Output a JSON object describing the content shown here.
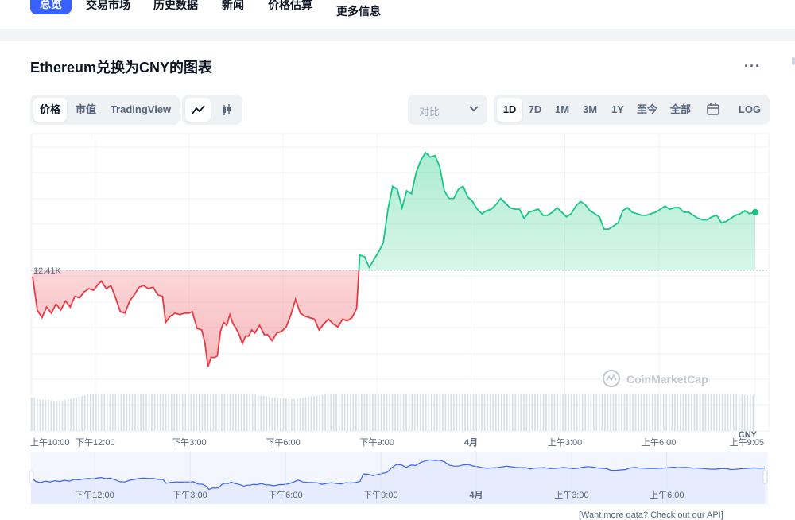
{
  "nav": {
    "items": [
      {
        "label": "总览",
        "active": true
      },
      {
        "label": "交易市场"
      },
      {
        "label": "历史数据"
      },
      {
        "label": "新闻"
      },
      {
        "label": "价格估算"
      },
      {
        "label": "更多信息"
      }
    ]
  },
  "page": {
    "title": "Ethereum兑换为CNY的图表",
    "more_icon": "more-horizontal-icon"
  },
  "toolbar": {
    "chart_types": [
      "价格",
      "市值",
      "TradingView"
    ],
    "chart_types_active": "价格",
    "view_icons": [
      "line-chart-icon",
      "candlestick-icon"
    ],
    "compare_placeholder": "对比",
    "compare_icon": "chevron-down-icon",
    "ranges": [
      "1D",
      "7D",
      "1M",
      "3M",
      "1Y",
      "至今",
      "全部"
    ],
    "range_active": "1D",
    "calendar_icon": "calendar-icon",
    "log_label": "LOG"
  },
  "chart_data": {
    "type": "line",
    "currency": "CNY",
    "reference_value": 12410,
    "reference_label": "12.41K",
    "y_unit_label": "CNY",
    "watermark": "CoinMarketCap",
    "colors": {
      "above": "#16c784",
      "below": "#ea3943",
      "volume": "#d9dde4",
      "navigator_line": "#3861fb",
      "navigator_fill": "#e6ebfd"
    },
    "x_tick_labels": [
      "上午10:00",
      "下午12:00",
      "下午3:00",
      "下午6:00",
      "下午9:00",
      "4月",
      "上午3:00",
      "上午6:00",
      "上午9:05"
    ],
    "x_tick_hours": [
      0,
      2,
      5,
      8,
      11,
      14,
      17,
      20,
      23.08
    ],
    "grid": true,
    "price_series": [
      [
        0.0,
        12406
      ],
      [
        0.15,
        12384
      ],
      [
        0.3,
        12379
      ],
      [
        0.45,
        12386
      ],
      [
        0.6,
        12382
      ],
      [
        0.75,
        12388
      ],
      [
        0.9,
        12384
      ],
      [
        1.05,
        12390
      ],
      [
        1.2,
        12386
      ],
      [
        1.35,
        12393
      ],
      [
        1.5,
        12392
      ],
      [
        1.65,
        12396
      ],
      [
        1.8,
        12398
      ],
      [
        1.95,
        12397
      ],
      [
        2.1,
        12401
      ],
      [
        2.2,
        12403
      ],
      [
        2.35,
        12398
      ],
      [
        2.5,
        12400
      ],
      [
        2.65,
        12392
      ],
      [
        2.8,
        12383
      ],
      [
        2.95,
        12382
      ],
      [
        3.1,
        12390
      ],
      [
        3.25,
        12394
      ],
      [
        3.4,
        12399
      ],
      [
        3.55,
        12400
      ],
      [
        3.7,
        12398
      ],
      [
        3.85,
        12399
      ],
      [
        4.0,
        12394
      ],
      [
        4.15,
        12393
      ],
      [
        4.25,
        12376
      ],
      [
        4.4,
        12380
      ],
      [
        4.55,
        12382
      ],
      [
        4.7,
        12381
      ],
      [
        4.85,
        12382
      ],
      [
        5.0,
        12382
      ],
      [
        5.1,
        12383
      ],
      [
        5.25,
        12372
      ],
      [
        5.4,
        12371
      ],
      [
        5.5,
        12363
      ],
      [
        5.6,
        12347
      ],
      [
        5.7,
        12353
      ],
      [
        5.8,
        12353
      ],
      [
        5.9,
        12354
      ],
      [
        6.0,
        12370
      ],
      [
        6.1,
        12376
      ],
      [
        6.2,
        12374
      ],
      [
        6.3,
        12381
      ],
      [
        6.4,
        12375
      ],
      [
        6.5,
        12372
      ],
      [
        6.6,
        12368
      ],
      [
        6.7,
        12362
      ],
      [
        6.8,
        12367
      ],
      [
        6.9,
        12367
      ],
      [
        7.0,
        12371
      ],
      [
        7.1,
        12369
      ],
      [
        7.25,
        12374
      ],
      [
        7.4,
        12368
      ],
      [
        7.5,
        12368
      ],
      [
        7.65,
        12364
      ],
      [
        7.8,
        12369
      ],
      [
        7.95,
        12370
      ],
      [
        8.1,
        12373
      ],
      [
        8.25,
        12381
      ],
      [
        8.4,
        12391
      ],
      [
        8.55,
        12382
      ],
      [
        8.7,
        12380
      ],
      [
        8.85,
        12379
      ],
      [
        9.0,
        12378
      ],
      [
        9.15,
        12371
      ],
      [
        9.3,
        12375
      ],
      [
        9.45,
        12378
      ],
      [
        9.6,
        12375
      ],
      [
        9.75,
        12373
      ],
      [
        9.9,
        12378
      ],
      [
        10.05,
        12377
      ],
      [
        10.2,
        12379
      ],
      [
        10.35,
        12385
      ],
      [
        10.45,
        12420
      ],
      [
        10.6,
        12419
      ],
      [
        10.75,
        12412
      ],
      [
        10.9,
        12417
      ],
      [
        11.05,
        12422
      ],
      [
        11.2,
        12428
      ],
      [
        11.35,
        12450
      ],
      [
        11.5,
        12465
      ],
      [
        11.65,
        12463
      ],
      [
        11.8,
        12451
      ],
      [
        11.95,
        12462
      ],
      [
        12.1,
        12460
      ],
      [
        12.25,
        12474
      ],
      [
        12.4,
        12482
      ],
      [
        12.55,
        12487
      ],
      [
        12.7,
        12484
      ],
      [
        12.85,
        12485
      ],
      [
        13.0,
        12478
      ],
      [
        13.15,
        12462
      ],
      [
        13.3,
        12457
      ],
      [
        13.45,
        12457
      ],
      [
        13.6,
        12463
      ],
      [
        13.75,
        12465
      ],
      [
        13.9,
        12458
      ],
      [
        14.05,
        12455
      ],
      [
        14.2,
        12450
      ],
      [
        14.35,
        12447
      ],
      [
        14.5,
        12449
      ],
      [
        14.65,
        12450
      ],
      [
        14.8,
        12453
      ],
      [
        14.95,
        12457
      ],
      [
        15.1,
        12454
      ],
      [
        15.25,
        12451
      ],
      [
        15.4,
        12450
      ],
      [
        15.55,
        12450
      ],
      [
        15.7,
        12444
      ],
      [
        15.85,
        12448
      ],
      [
        16.0,
        12449
      ],
      [
        16.15,
        12450
      ],
      [
        16.3,
        12446
      ],
      [
        16.45,
        12446
      ],
      [
        16.6,
        12448
      ],
      [
        16.75,
        12451
      ],
      [
        16.9,
        12448
      ],
      [
        17.05,
        12445
      ],
      [
        17.2,
        12447
      ],
      [
        17.35,
        12452
      ],
      [
        17.5,
        12455
      ],
      [
        17.65,
        12453
      ],
      [
        17.8,
        12449
      ],
      [
        17.95,
        12447
      ],
      [
        18.1,
        12445
      ],
      [
        18.25,
        12437
      ],
      [
        18.4,
        12437
      ],
      [
        18.55,
        12439
      ],
      [
        18.7,
        12441
      ],
      [
        18.85,
        12449
      ],
      [
        19.0,
        12451
      ],
      [
        19.15,
        12448
      ],
      [
        19.3,
        12447
      ],
      [
        19.45,
        12446
      ],
      [
        19.6,
        12446
      ],
      [
        19.75,
        12447
      ],
      [
        19.9,
        12448
      ],
      [
        20.05,
        12450
      ],
      [
        20.2,
        12452
      ],
      [
        20.35,
        12450
      ],
      [
        20.5,
        12451
      ],
      [
        20.65,
        12451
      ],
      [
        20.8,
        12448
      ],
      [
        20.95,
        12448
      ],
      [
        21.1,
        12446
      ],
      [
        21.25,
        12444
      ],
      [
        21.4,
        12443
      ],
      [
        21.55,
        12443
      ],
      [
        21.7,
        12445
      ],
      [
        21.85,
        12446
      ],
      [
        22.0,
        12441
      ],
      [
        22.15,
        12442
      ],
      [
        22.3,
        12444
      ],
      [
        22.45,
        12446
      ],
      [
        22.6,
        12447
      ],
      [
        22.75,
        12449
      ],
      [
        22.9,
        12447
      ],
      [
        23.08,
        12448
      ]
    ],
    "volume_series": [
      0.76,
      0.76,
      0.74,
      0.72,
      0.71,
      0.72,
      0.71,
      0.7,
      0.69,
      0.69,
      0.7,
      0.7,
      0.71,
      0.73,
      0.74,
      0.76,
      0.77,
      0.78,
      0.8,
      0.82,
      0.84,
      0.84,
      0.84,
      0.84,
      0.84,
      0.84,
      0.84,
      0.84,
      0.84,
      0.84,
      0.84,
      0.84,
      0.84,
      0.84,
      0.84,
      0.84,
      0.84,
      0.84,
      0.84,
      0.84,
      0.84,
      0.84,
      0.84,
      0.84,
      0.84,
      0.84,
      0.84,
      0.84,
      0.84,
      0.84,
      0.84,
      0.84,
      0.84,
      0.84,
      0.84,
      0.84,
      0.84,
      0.84,
      0.84,
      0.84,
      0.84,
      0.84,
      0.84,
      0.84,
      0.84,
      0.84,
      0.84,
      0.84,
      0.84,
      0.84,
      0.84,
      0.84,
      0.84,
      0.84,
      0.84,
      0.84,
      0.84,
      0.84,
      0.84,
      0.84,
      0.83,
      0.82,
      0.81,
      0.8,
      0.79,
      0.78,
      0.77,
      0.77,
      0.76,
      0.75,
      0.75,
      0.74,
      0.74,
      0.73,
      0.73,
      0.74,
      0.75,
      0.76,
      0.77,
      0.78,
      0.79,
      0.8,
      0.81,
      0.82,
      0.83,
      0.84,
      0.84,
      0.84,
      0.84,
      0.84,
      0.84,
      0.84,
      0.84,
      0.84,
      0.84,
      0.84,
      0.84,
      0.84,
      0.84,
      0.84,
      0.84,
      0.84,
      0.84,
      0.84,
      0.84,
      0.84,
      0.84,
      0.84,
      0.84,
      0.84,
      0.84,
      0.84,
      0.84,
      0.84,
      0.84,
      0.84,
      0.84,
      0.84,
      0.84,
      0.84,
      0.84,
      0.84,
      0.84,
      0.84,
      0.84,
      0.84,
      0.84,
      0.84,
      0.84,
      0.84,
      0.84,
      0.84,
      0.84,
      0.84,
      0.84,
      0.84,
      0.84,
      0.84,
      0.84,
      0.84,
      0.84,
      0.84,
      0.84,
      0.84,
      0.84,
      0.84,
      0.84,
      0.84,
      0.84,
      0.84,
      0.84,
      0.84,
      0.84,
      0.84,
      0.84,
      0.84,
      0.84,
      0.84,
      0.84,
      0.84,
      0.84,
      0.84,
      0.84,
      0.84,
      0.84,
      0.84,
      0.84,
      0.84,
      0.84,
      0.84,
      0.84,
      0.84,
      0.84,
      0.84,
      0.84,
      0.84,
      0.84,
      0.84,
      0.84,
      0.84,
      0.84,
      0.84,
      0.84,
      0.84,
      0.84,
      0.84,
      0.84,
      0.84,
      0.84,
      0.84,
      0.84,
      0.84,
      0.84,
      0.84,
      0.84,
      0.84,
      0.84,
      0.84,
      0.84,
      0.84,
      0.84,
      0.84,
      0.84,
      0.84,
      0.84,
      0.84,
      0.84,
      0.84,
      0.84,
      0.84,
      0.84,
      0.84,
      0.84,
      0.84,
      0.84,
      0.84,
      0.84,
      0.84,
      0.84,
      0.84,
      0.84,
      0.84,
      0.84,
      0.84,
      0.84,
      0.84,
      0.84,
      0.84,
      0.84,
      0.84,
      0.84,
      0.84,
      0.84,
      0.84,
      0.83,
      0.83,
      0.82,
      0.82,
      0.81
    ],
    "navigator": {
      "tick_labels": [
        "下午12:00",
        "下午3:00",
        "下午6:00",
        "下午9:00",
        "4月",
        "上午3:00",
        "上午6:00"
      ],
      "tick_hours": [
        2,
        5,
        8,
        11,
        14,
        17,
        20
      ]
    }
  },
  "footer_text": "[Want more data? Check out our API]"
}
